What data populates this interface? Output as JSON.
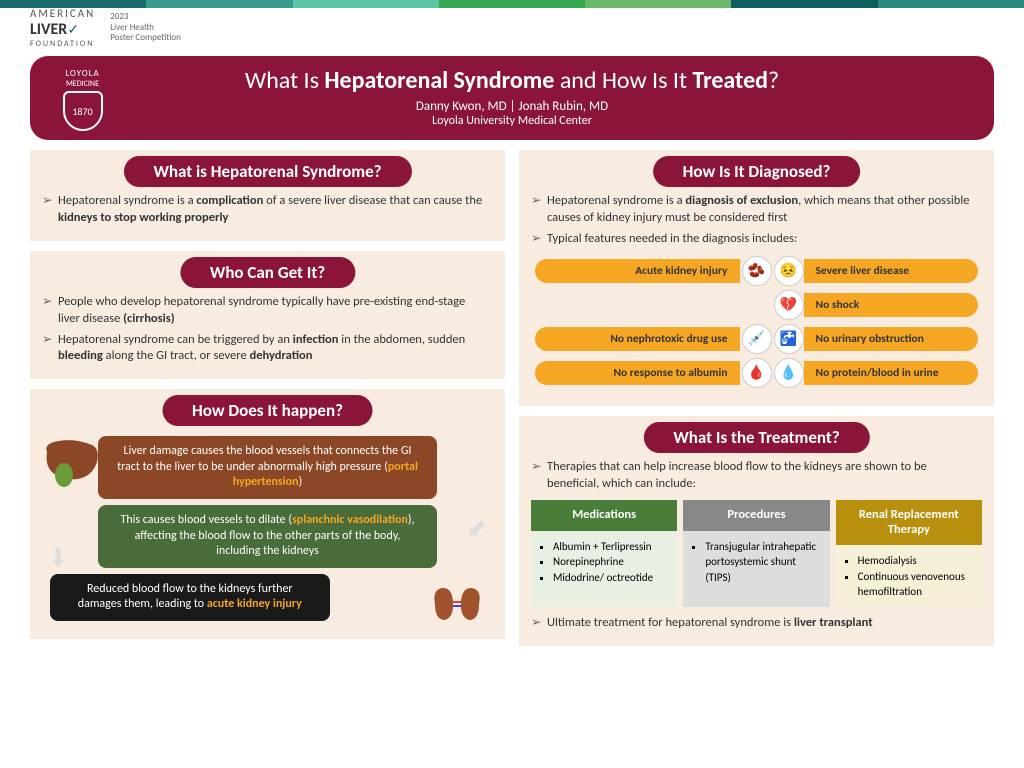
{
  "topbar_colors": [
    "#1a6b6b",
    "#3a9b8b",
    "#5bc4a4",
    "#34a853",
    "#6bb86b",
    "#0d5f5f",
    "#2a8b7a"
  ],
  "org": {
    "top": "AMERICAN",
    "name": "LIVER",
    "sub": "FOUNDATION"
  },
  "comp": {
    "year": "2023",
    "l1": "Liver Health",
    "l2": "Poster Competition"
  },
  "shield": {
    "top": "LOYOLA",
    "mid": "MEDICINE",
    "year": "1870"
  },
  "title": {
    "p1": "What Is ",
    "b1": "Hepatorenal Syndrome ",
    "p2": "and How Is It ",
    "b2": "Treated",
    "p3": "?"
  },
  "authors": "Danny Kwon, MD | Jonah Rubin, MD",
  "inst": "Loyola University Medical Center",
  "s1": {
    "title": "What is Hepatorenal Syndrome?",
    "b1a": "Hepatorenal syndrome is a ",
    "b1b": "complication",
    "b1c": " of a severe liver disease that can cause the ",
    "b1d": "kidneys to stop working properly"
  },
  "s2": {
    "title": "Who Can Get It?",
    "b1a": "People who develop hepatorenal syndrome typically have pre-existing end-stage liver disease ",
    "b1b": "(cirrhosis)",
    "b2a": "Hepatorenal syndrome can be triggered by an ",
    "b2b": "infection",
    "b2c": " in the abdomen, sudden ",
    "b2d": "bleeding",
    "b2e": " along the GI tract, or severe ",
    "b2f": "dehydration"
  },
  "s3": {
    "title": "How Does It happen?",
    "f1a": "Liver damage causes the blood vessels that connects the GI tract to the liver to be under abnormally high pressure (",
    "f1b": "portal hypertension",
    "f1c": ")",
    "f2a": "This causes blood vessels to dilate (",
    "f2b": "splanchnic vasodilation",
    "f2c": "), affecting the blood flow to the other parts of the body, including the kidneys",
    "f3a": "Reduced blood flow to the kidneys further damages them, leading to ",
    "f3b": "acute kidney injury"
  },
  "s4": {
    "title": "How Is It Diagnosed?",
    "b1a": "Hepatorenal syndrome is a ",
    "b1b": "diagnosis of exclusion",
    "b1c": ", which means that other possible causes of kidney injury must be considered first",
    "b2": "Typical features needed in the diagnosis includes:",
    "criteria": [
      {
        "l": "Acute kidney injury",
        "icon": "🫘",
        "r": "Severe liver disease",
        "ricon": "😣"
      },
      {
        "l": "",
        "icon": "",
        "r": "No shock",
        "ricon": "💔"
      },
      {
        "l": "No nephrotoxic drug use",
        "icon": "💉",
        "r": "No urinary obstruction",
        "ricon": "🚰"
      },
      {
        "l": "No response to albumin",
        "icon": "🩸",
        "r": "No protein/blood in urine",
        "ricon": "💧"
      }
    ]
  },
  "s5": {
    "title": "What Is the Treatment?",
    "b1": "Therapies that can help increase blood flow to the kidneys are shown to be beneficial, which can include:",
    "cols": [
      {
        "head": "Medications",
        "head_bg": "th-green",
        "body_bg": "tb-green",
        "items": [
          "Albumin + Terlipressin",
          "Norepinephrine",
          "Midodrine/ octreotide"
        ]
      },
      {
        "head": "Procedures",
        "head_bg": "th-gray",
        "body_bg": "tb-gray",
        "items": [
          "Transjugular intrahepatic portosystemic shunt (TIPS)"
        ]
      },
      {
        "head": "Renal Replacement Therapy",
        "head_bg": "th-gold",
        "body_bg": "tb-gold",
        "items": [
          "Hemodialysis",
          "Continuous venovenous hemofiltration"
        ]
      }
    ],
    "b2a": "Ultimate treatment for hepatorenal syndrome is ",
    "b2b": "liver transplant"
  }
}
